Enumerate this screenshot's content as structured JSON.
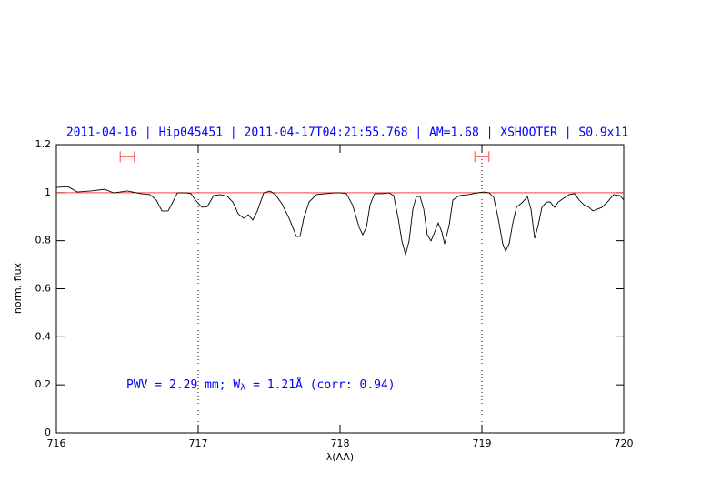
{
  "chart_data": {
    "type": "line",
    "title": "2011-04-16 | Hip045451 | 2011-04-17T04:21:55.768 | AM=1.68 | XSHOOTER | S0.9x11",
    "xlabel": "λ(AA)",
    "ylabel": "norm. flux",
    "annotation": [
      "PWV = 2.29 mm; W",
      "λ",
      " = 1.21Å (corr: 0.94)"
    ],
    "xlim": [
      716,
      720
    ],
    "xticks": [
      716,
      717,
      718,
      719,
      720
    ],
    "ylim": [
      0,
      1.2
    ],
    "yticks": [
      0,
      0.2,
      0.4,
      0.6,
      0.8,
      1,
      1.2
    ],
    "vlines": [
      717,
      719
    ],
    "continuum": {
      "value": 1,
      "color": "#ff4040"
    },
    "windows": {
      "color": "#ff4040",
      "level": 1.15,
      "ranges": [
        [
          716.45,
          716.55
        ],
        [
          718.95,
          719.05
        ]
      ]
    },
    "series": [
      {
        "color": "#000000",
        "x": [
          716.0,
          716.083,
          716.147,
          716.244,
          716.34,
          716.404,
          716.5,
          716.596,
          716.66,
          716.705,
          716.744,
          716.788,
          716.821,
          716.853,
          716.917,
          716.949,
          716.981,
          717.026,
          717.064,
          717.109,
          717.154,
          717.205,
          717.244,
          717.282,
          717.321,
          717.353,
          717.385,
          717.417,
          717.462,
          717.506,
          717.545,
          717.59,
          717.641,
          717.692,
          717.718,
          717.744,
          717.782,
          717.833,
          717.897,
          717.962,
          718.006,
          718.045,
          718.09,
          718.135,
          718.16,
          718.186,
          718.212,
          718.244,
          718.295,
          718.346,
          718.378,
          718.41,
          718.436,
          718.462,
          718.487,
          718.513,
          718.538,
          718.564,
          718.59,
          718.615,
          718.641,
          718.667,
          718.692,
          718.718,
          718.737,
          718.769,
          718.795,
          718.84,
          718.904,
          718.968,
          719.013,
          719.051,
          719.083,
          719.115,
          719.147,
          719.167,
          719.192,
          719.218,
          719.244,
          719.288,
          719.321,
          719.346,
          719.372,
          719.397,
          719.423,
          719.455,
          719.481,
          719.513,
          719.538,
          719.577,
          719.615,
          719.654,
          719.686,
          719.718,
          719.756,
          719.782,
          719.814,
          719.846,
          719.885,
          719.929,
          719.974,
          720.0
        ],
        "values": [
          1.022,
          1.025,
          1.003,
          1.007,
          1.014,
          0.999,
          1.007,
          0.996,
          0.992,
          0.969,
          0.924,
          0.924,
          0.961,
          0.999,
          0.999,
          0.996,
          0.969,
          0.939,
          0.942,
          0.988,
          0.992,
          0.985,
          0.961,
          0.912,
          0.893,
          0.908,
          0.886,
          0.924,
          0.999,
          1.007,
          0.992,
          0.954,
          0.893,
          0.818,
          0.818,
          0.893,
          0.961,
          0.992,
          0.996,
          0.999,
          0.999,
          0.996,
          0.946,
          0.855,
          0.825,
          0.855,
          0.95,
          0.996,
          0.996,
          0.999,
          0.988,
          0.893,
          0.799,
          0.742,
          0.799,
          0.931,
          0.984,
          0.984,
          0.931,
          0.825,
          0.799,
          0.836,
          0.874,
          0.836,
          0.787,
          0.863,
          0.969,
          0.988,
          0.992,
          0.999,
          1.003,
          0.999,
          0.98,
          0.893,
          0.787,
          0.757,
          0.787,
          0.874,
          0.939,
          0.961,
          0.984,
          0.931,
          0.81,
          0.863,
          0.939,
          0.961,
          0.961,
          0.939,
          0.961,
          0.977,
          0.992,
          0.996,
          0.969,
          0.95,
          0.939,
          0.924,
          0.931,
          0.939,
          0.961,
          0.992,
          0.988,
          0.969
        ]
      }
    ]
  }
}
